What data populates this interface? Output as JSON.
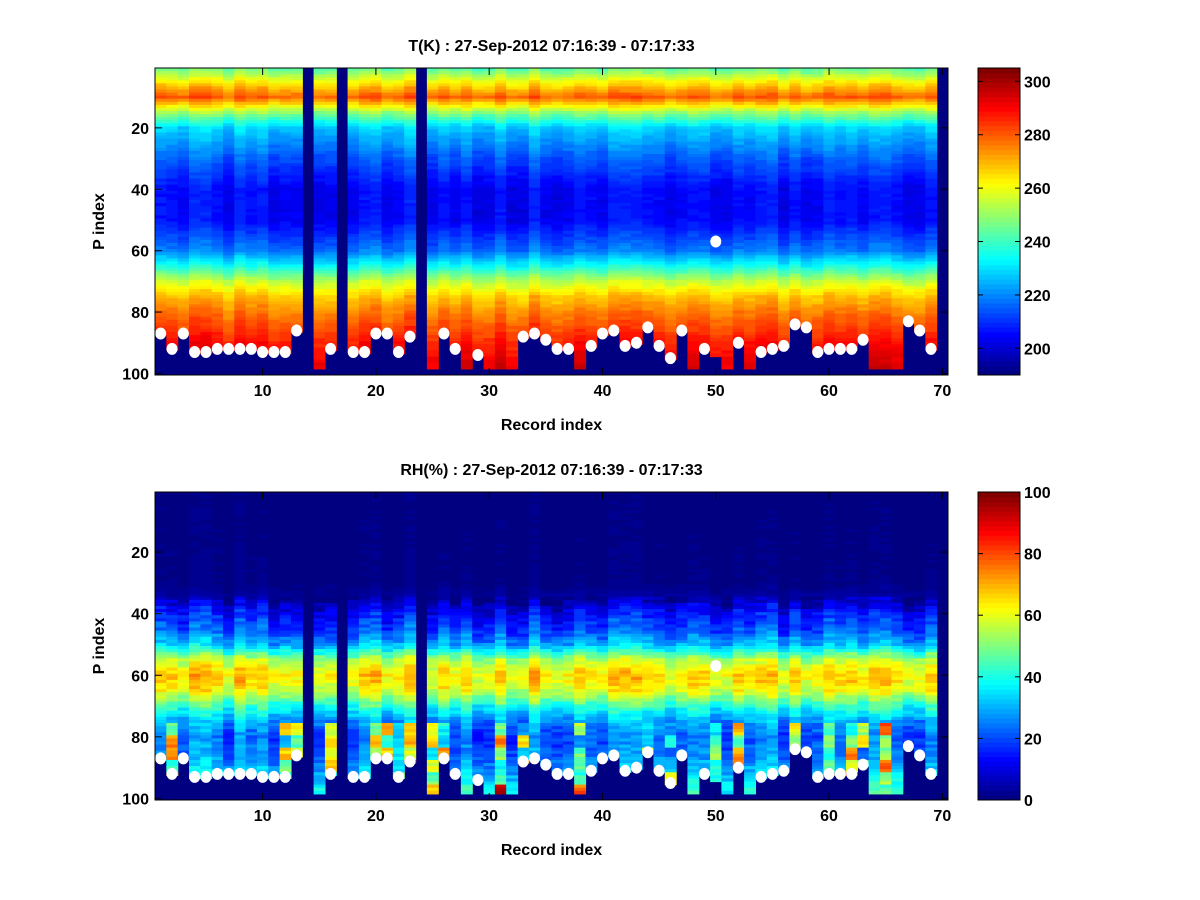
{
  "chart_data": [
    {
      "type": "heatmap",
      "title": "T(K) : 27-Sep-2012 07:16:39 - 07:17:33",
      "xlabel": "Record index",
      "ylabel": "P index",
      "xlim": [
        1,
        70
      ],
      "ylim": [
        1,
        100
      ],
      "y_reversed": true,
      "x_ticks": [
        "10",
        "20",
        "30",
        "40",
        "50",
        "60",
        "70"
      ],
      "y_ticks": [
        "20",
        "40",
        "60",
        "80",
        "100"
      ],
      "clim": [
        190,
        305
      ],
      "colorbar_ticks": [
        "200",
        "220",
        "240",
        "260",
        "280",
        "300"
      ],
      "colormap": "jet",
      "mean_profile": {
        "p_index": [
          1,
          5,
          10,
          15,
          20,
          30,
          40,
          50,
          60,
          65,
          70,
          75,
          80,
          85,
          90,
          95,
          100
        ],
        "value": [
          245,
          262,
          280,
          250,
          228,
          215,
          205,
          205,
          218,
          235,
          255,
          268,
          276,
          282,
          288,
          292,
          295
        ]
      },
      "missing_records": [
        14,
        17,
        24,
        70
      ]
    },
    {
      "type": "heatmap",
      "title": "RH(%) : 27-Sep-2012 07:16:39 - 07:17:33",
      "xlabel": "Record index",
      "ylabel": "P index",
      "xlim": [
        1,
        70
      ],
      "ylim": [
        1,
        100
      ],
      "y_reversed": true,
      "x_ticks": [
        "10",
        "20",
        "30",
        "40",
        "50",
        "60",
        "70"
      ],
      "y_ticks": [
        "20",
        "40",
        "60",
        "80",
        "100"
      ],
      "clim": [
        0,
        100
      ],
      "colorbar_ticks": [
        "0",
        "20",
        "40",
        "60",
        "80",
        "100"
      ],
      "colormap": "jet",
      "mean_profile": {
        "p_index": [
          1,
          30,
          35,
          40,
          45,
          50,
          55,
          60,
          65,
          70,
          75,
          80,
          85,
          90,
          95,
          100
        ],
        "value": [
          0,
          1,
          4,
          14,
          20,
          30,
          55,
          66,
          60,
          42,
          28,
          22,
          24,
          30,
          38,
          45
        ]
      },
      "missing_records": [
        14,
        17,
        24,
        70
      ]
    }
  ],
  "surface_markers": {
    "description_label": "surface P index per record (white dots)",
    "p_index": [
      87,
      92,
      87,
      93,
      93,
      92,
      92,
      92,
      92,
      93,
      93,
      93,
      86,
      null,
      null,
      92,
      null,
      93,
      93,
      87,
      87,
      93,
      88,
      null,
      null,
      87,
      92,
      null,
      94,
      null,
      null,
      null,
      88,
      87,
      89,
      92,
      92,
      null,
      91,
      87,
      86,
      91,
      90,
      85,
      91,
      95,
      86,
      null,
      92,
      57,
      null,
      90,
      null,
      93,
      92,
      91,
      84,
      85,
      93,
      92,
      92,
      92,
      89,
      null,
      null,
      null,
      83,
      86,
      92,
      null
    ]
  }
}
